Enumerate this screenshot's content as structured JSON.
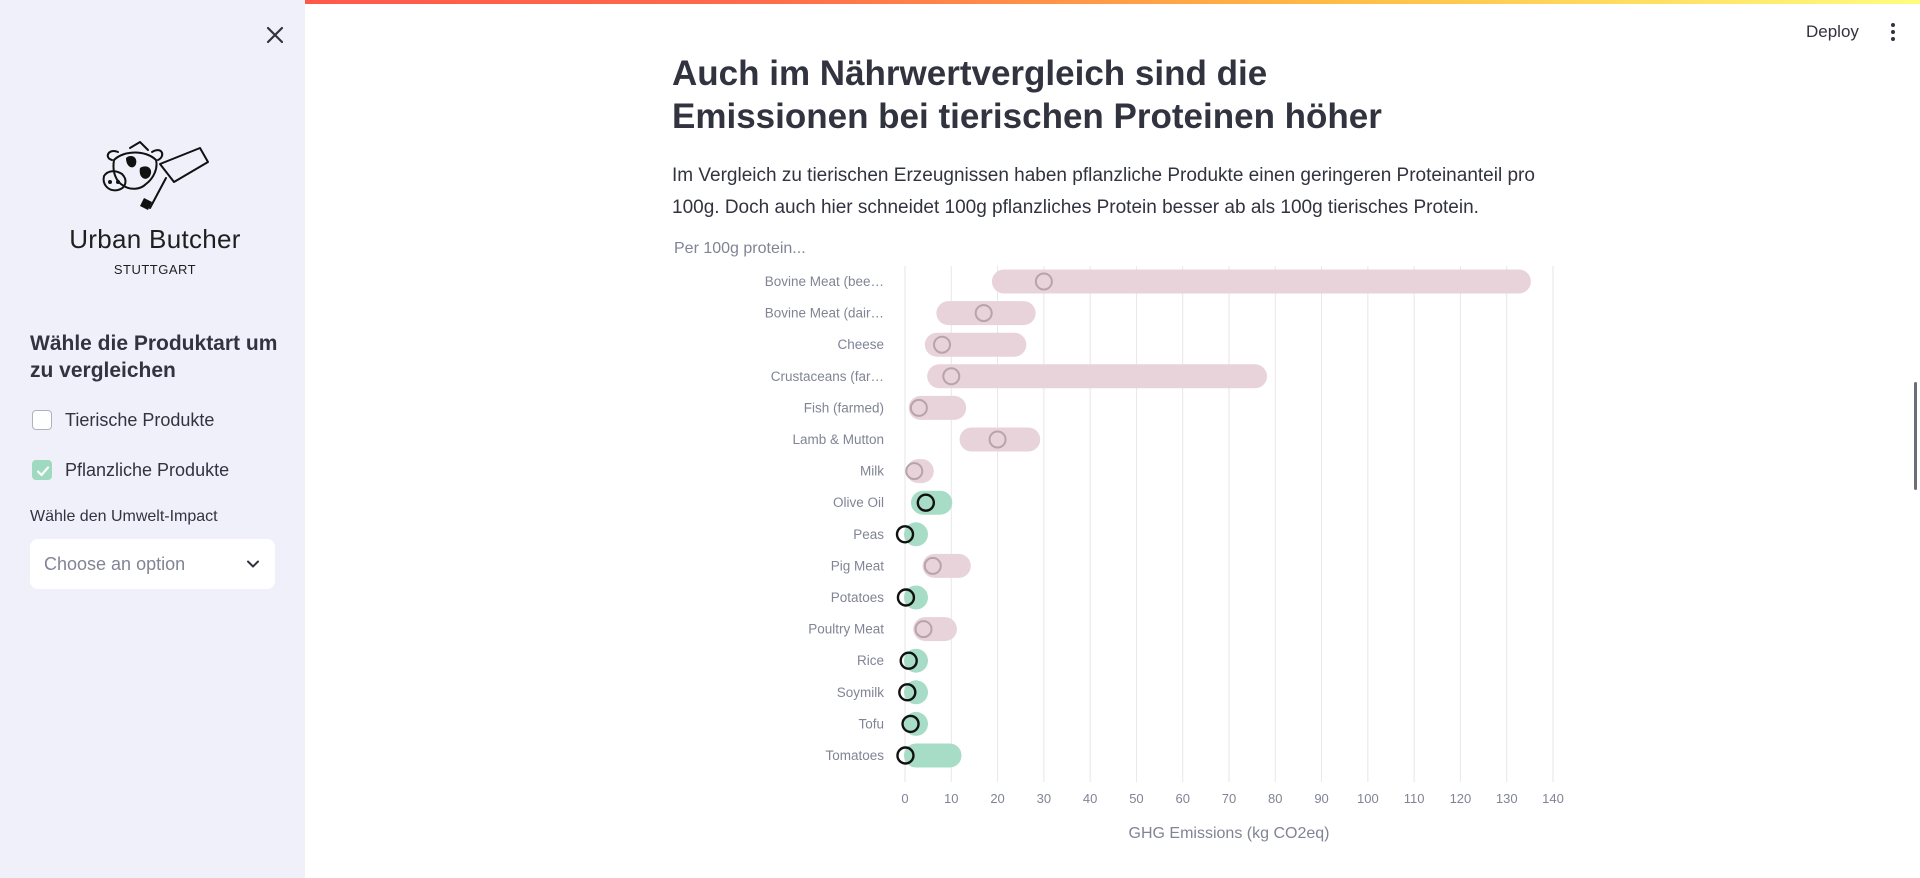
{
  "app": {
    "deploy_label": "Deploy",
    "colors": {
      "accent_bar_start": "#ff4b4b",
      "accent_bar_end": "#fffd80",
      "sidebar_bg": "#f0f0fb"
    }
  },
  "sidebar": {
    "close_icon": "close-icon",
    "brand_name": "Urban Butcher",
    "brand_city": "STUTTGART",
    "heading": "Wähle die Produktart um zu vergleichen",
    "checkboxes": [
      {
        "label": "Tierische Produkte",
        "checked": false
      },
      {
        "label": "Pflanzliche Produkte",
        "checked": true
      }
    ],
    "select_label": "Wähle den Umwelt-Impact",
    "select_placeholder": "Choose an option"
  },
  "main": {
    "title": "Auch im Nährwertvergleich sind die Emissionen bei tierischen Proteinen höher",
    "paragraph": "Im Vergleich zu tierischen Erzeugnissen haben pflanzliche Produkte einen geringeren Proteinanteil pro 100g. Doch auch hier schneidet 100g pflanzliches Protein besser ab als 100g tierisches Protein.",
    "chart_title": "Per 100g protein..."
  },
  "chart_data": {
    "type": "bar",
    "orientation": "horizontal-range",
    "title": "Per 100g protein...",
    "xlabel": "GHG Emissions (kg CO2eq)",
    "ylabel": "",
    "xlim": [
      0,
      140
    ],
    "xticks": [
      0,
      10,
      20,
      30,
      40,
      50,
      60,
      70,
      80,
      90,
      100,
      110,
      120,
      130,
      140
    ],
    "grid": true,
    "colors": {
      "animal": "#e8d3da",
      "plant": "#a7dcc7",
      "animal_marker": "#b9a3ab",
      "plant_marker": "#111111"
    },
    "categories": [
      "Bovine Meat (bee…",
      "Bovine Meat (dair…",
      "Cheese",
      "Crustaceans (far…",
      "Fish (farmed)",
      "Lamb & Mutton",
      "Milk",
      "Olive Oil",
      "Peas",
      "Pig Meat",
      "Potatoes",
      "Poultry Meat",
      "Rice",
      "Soymilk",
      "Tofu",
      "Tomatoes"
    ],
    "series": [
      {
        "kind": [
          "animal",
          "animal",
          "animal",
          "animal",
          "animal",
          "animal",
          "animal",
          "plant",
          "plant",
          "animal",
          "plant",
          "animal",
          "plant",
          "plant",
          "plant",
          "plant"
        ]
      },
      {
        "min": [
          19,
          7,
          4.5,
          5,
          1,
          12,
          0.5,
          1.5,
          0,
          4,
          0,
          2,
          0,
          0,
          0,
          0
        ]
      },
      {
        "max": [
          135,
          28,
          26,
          78,
          13,
          29,
          6,
          10,
          0.5,
          14,
          1,
          11,
          2,
          2,
          4,
          12
        ]
      },
      {
        "median": [
          30,
          17,
          8,
          10,
          3,
          20,
          2,
          4.5,
          0,
          6,
          0.2,
          4,
          0.8,
          0.5,
          1.2,
          0.1
        ]
      }
    ]
  }
}
